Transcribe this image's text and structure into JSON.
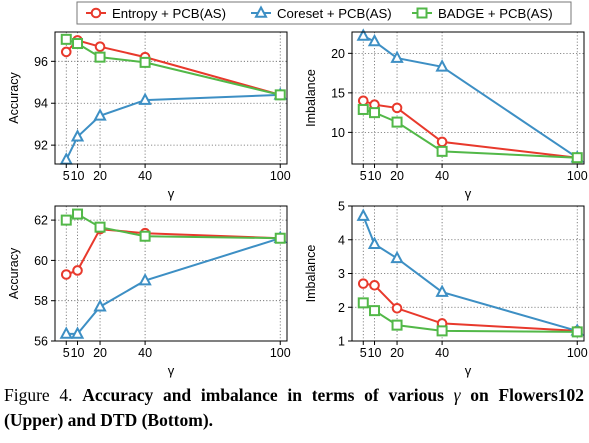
{
  "legend": {
    "items": [
      {
        "label": "Entropy + PCB(AS)",
        "color": "#e8392c",
        "marker": "circle"
      },
      {
        "label": "Coreset + PCB(AS)",
        "color": "#3d8fc4",
        "marker": "triangle"
      },
      {
        "label": "BADGE + PCB(AS)",
        "color": "#52b848",
        "marker": "square"
      }
    ]
  },
  "caption": {
    "figure_label": "Figure 4.",
    "text_bold_1": "Accuracy and imbalance in terms of various",
    "symbol": "γ",
    "text_bold_2": "on Flowers102 (Upper) and DTD (Bottom)."
  },
  "chart_data": [
    {
      "type": "line",
      "panel": "top-left",
      "xlabel": "γ",
      "ylabel": "Accuracy",
      "x": [
        5,
        10,
        20,
        40,
        100
      ],
      "xticks": [
        "5",
        "10",
        "20",
        "40",
        "100"
      ],
      "xlim": [
        0,
        103
      ],
      "ylim": [
        91.1,
        97.4
      ],
      "yticks": [
        92,
        94,
        96
      ],
      "grid": true,
      "series": [
        {
          "name": "Entropy + PCB(AS)",
          "values": [
            96.45,
            97.0,
            96.7,
            96.2,
            94.4
          ]
        },
        {
          "name": "Coreset + PCB(AS)",
          "values": [
            91.3,
            92.4,
            93.4,
            94.15,
            94.4
          ]
        },
        {
          "name": "BADGE + PCB(AS)",
          "values": [
            97.05,
            96.85,
            96.2,
            95.95,
            94.4
          ]
        }
      ]
    },
    {
      "type": "line",
      "panel": "top-right",
      "xlabel": "γ",
      "ylabel": "Imbalance",
      "x": [
        5,
        10,
        20,
        40,
        100
      ],
      "xticks": [
        "5",
        "10",
        "20",
        "40",
        "100"
      ],
      "xlim": [
        0,
        103
      ],
      "ylim": [
        6.0,
        22.7
      ],
      "yticks": [
        10,
        15,
        20
      ],
      "grid": true,
      "series": [
        {
          "name": "Entropy + PCB(AS)",
          "values": [
            14.0,
            13.5,
            13.1,
            8.8,
            6.8
          ]
        },
        {
          "name": "Coreset + PCB(AS)",
          "values": [
            22.2,
            21.5,
            19.4,
            18.3,
            6.8
          ]
        },
        {
          "name": "BADGE + PCB(AS)",
          "values": [
            12.9,
            12.5,
            11.3,
            7.6,
            6.8
          ]
        }
      ]
    },
    {
      "type": "line",
      "panel": "bottom-left",
      "xlabel": "γ",
      "ylabel": "Accuracy",
      "x": [
        5,
        10,
        20,
        40,
        100
      ],
      "xticks": [
        "5",
        "10",
        "20",
        "40",
        "100"
      ],
      "xlim": [
        0,
        103
      ],
      "ylim": [
        56.0,
        62.7
      ],
      "yticks": [
        56,
        58,
        60,
        62
      ],
      "grid": true,
      "series": [
        {
          "name": "Entropy + PCB(AS)",
          "values": [
            59.3,
            59.5,
            61.55,
            61.35,
            61.1
          ]
        },
        {
          "name": "Coreset + PCB(AS)",
          "values": [
            56.35,
            56.35,
            57.7,
            59.0,
            61.1
          ]
        },
        {
          "name": "BADGE + PCB(AS)",
          "values": [
            62.0,
            62.3,
            61.65,
            61.2,
            61.1
          ]
        }
      ]
    },
    {
      "type": "line",
      "panel": "bottom-right",
      "xlabel": "γ",
      "ylabel": "Imbalance",
      "x": [
        5,
        10,
        20,
        40,
        100
      ],
      "xticks": [
        "5",
        "10",
        "20",
        "40",
        "100"
      ],
      "xlim": [
        0,
        103
      ],
      "ylim": [
        1.0,
        5.0
      ],
      "yticks": [
        1,
        2,
        3,
        4,
        5
      ],
      "grid": true,
      "series": [
        {
          "name": "Entropy + PCB(AS)",
          "values": [
            2.7,
            2.65,
            1.97,
            1.52,
            1.3
          ]
        },
        {
          "name": "Coreset + PCB(AS)",
          "values": [
            4.7,
            3.87,
            3.45,
            2.45,
            1.3
          ]
        },
        {
          "name": "BADGE + PCB(AS)",
          "values": [
            2.13,
            1.9,
            1.47,
            1.3,
            1.27
          ]
        }
      ]
    }
  ]
}
